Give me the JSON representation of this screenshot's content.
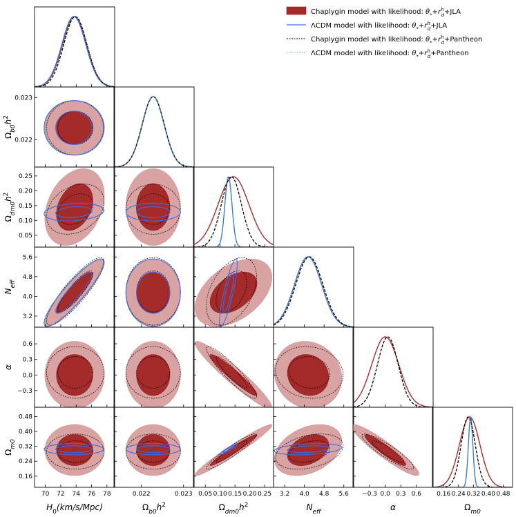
{
  "chart_data": {
    "type": "triangle-corner",
    "parameters": [
      {
        "name": "H0",
        "label": "H₀(km/s/Mpc)",
        "range": [
          68.6,
          79.0
        ],
        "ticks": [
          70,
          72,
          74,
          76,
          78
        ],
        "tick_labels": [
          "70",
          "72",
          "74",
          "76",
          "78"
        ]
      },
      {
        "name": "ombh2",
        "label": "Ω_b0 h²",
        "range": [
          0.02135,
          0.02325
        ],
        "ticks": [
          0.022,
          0.023
        ],
        "tick_labels": [
          "0.022",
          "0.023"
        ]
      },
      {
        "name": "omch2",
        "label": "Ω_dm0 h²",
        "range": [
          0.01,
          0.28
        ],
        "ticks": [
          0.05,
          0.1,
          0.15,
          0.2,
          0.25
        ],
        "tick_labels": [
          "0.05",
          "0.10",
          "0.15",
          "0.20",
          "0.25"
        ]
      },
      {
        "name": "Neff",
        "label": "N_eff",
        "range": [
          2.75,
          6.0
        ],
        "ticks": [
          3.2,
          4.0,
          4.8,
          5.6
        ],
        "tick_labels": [
          "3.2",
          "4.0",
          "4.8",
          "5.6"
        ]
      },
      {
        "name": "alpha",
        "label": "α",
        "range": [
          -0.62,
          0.92
        ],
        "ticks": [
          -0.3,
          0.0,
          0.3,
          0.6
        ],
        "tick_labels": [
          "−0.3",
          "0.0",
          "0.3",
          "0.6"
        ]
      },
      {
        "name": "Om",
        "label": "Ω_m0",
        "range": [
          0.1,
          0.53
        ],
        "ticks": [
          0.16,
          0.24,
          0.32,
          0.4,
          0.48
        ],
        "tick_labels": [
          "0.16",
          "0.24",
          "0.32",
          "0.40",
          "0.48"
        ],
        "tick_labels_x": [
          "0.16",
          "0.24",
          "0.32",
          "0.40",
          "0.48"
        ]
      }
    ],
    "series": [
      {
        "name": "Chaplygin model with likelihood: θ*+r_d^h+JLA",
        "style": "filled",
        "color": "#a52a2a",
        "means": [
          73.8,
          0.02228,
          0.145,
          4.15,
          0.0,
          0.3
        ],
        "sigmas": [
          1.55,
          0.00026,
          0.052,
          0.55,
          0.26,
          0.055
        ]
      },
      {
        "name": "ΛCDM model with likelihood: θ*+r_d^h+JLA",
        "style": "solid",
        "color": "#4169e1",
        "means": [
          73.7,
          0.02228,
          0.128,
          4.15,
          null,
          0.305
        ],
        "sigmas": [
          1.55,
          0.00026,
          0.012,
          0.55,
          null,
          0.012
        ]
      },
      {
        "name": "Chaplygin model with likelihood: θ*+r_d^h+Pantheon",
        "style": "dashed",
        "color": "#000000",
        "means": [
          73.9,
          0.02228,
          0.138,
          4.2,
          0.05,
          0.292
        ],
        "sigmas": [
          1.5,
          0.00026,
          0.034,
          0.55,
          0.2,
          0.038
        ]
      },
      {
        "name": "ΛCDM model with likelihood: θ*+r_d^h+Pantheon",
        "style": "dotted",
        "color": "#3cb371",
        "means": [
          73.8,
          0.02228,
          0.128,
          4.15,
          null,
          0.305
        ],
        "sigmas": [
          1.55,
          0.00026,
          0.012,
          0.55,
          null,
          0.012
        ]
      }
    ],
    "correlations_chaplygin": [
      [
        1,
        0,
        0.3,
        0.9,
        0,
        0
      ],
      [
        0,
        1,
        0,
        0,
        0,
        0
      ],
      [
        0.3,
        0,
        1,
        0.45,
        -0.95,
        0.97
      ],
      [
        0.9,
        0,
        0.45,
        1,
        -0.1,
        0.35
      ],
      [
        0,
        0,
        -0.95,
        -0.1,
        1,
        -0.93
      ],
      [
        0,
        0,
        0.97,
        0.35,
        -0.93,
        1
      ]
    ],
    "correlations_lcdm": [
      [
        1,
        0,
        0.2,
        0.9,
        0,
        0
      ],
      [
        0,
        1,
        0,
        0,
        0,
        0
      ],
      [
        0.2,
        0,
        1,
        0.85,
        0,
        0.95
      ],
      [
        0.9,
        0,
        0.85,
        1,
        0,
        0.3
      ],
      [
        0,
        0,
        0,
        0,
        1,
        0
      ],
      [
        0,
        0,
        0.95,
        0.3,
        0,
        1
      ]
    ]
  }
}
